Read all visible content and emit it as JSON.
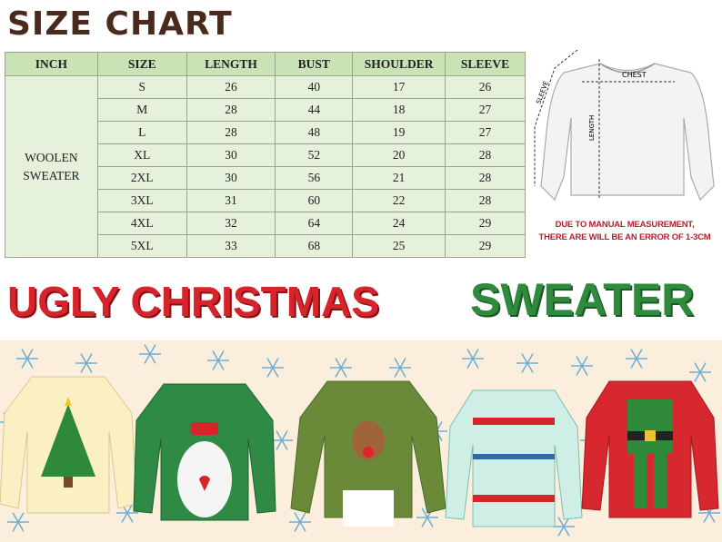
{
  "title": "SIZE CHART",
  "table": {
    "headers": [
      "INCH",
      "SIZE",
      "LENGTH",
      "BUST",
      "SHOULDER",
      "SLEEVE"
    ],
    "category": [
      "WOOLEN",
      "SWEATER"
    ],
    "rows": [
      [
        "S",
        "26",
        "40",
        "17",
        "26"
      ],
      [
        "M",
        "28",
        "44",
        "18",
        "27"
      ],
      [
        "L",
        "28",
        "48",
        "19",
        "27"
      ],
      [
        "XL",
        "30",
        "52",
        "20",
        "28"
      ],
      [
        "2XL",
        "30",
        "56",
        "21",
        "28"
      ],
      [
        "3XL",
        "31",
        "60",
        "22",
        "28"
      ],
      [
        "4XL",
        "32",
        "64",
        "24",
        "29"
      ],
      [
        "5XL",
        "33",
        "68",
        "25",
        "29"
      ]
    ]
  },
  "diagram": {
    "chest": "CHEST",
    "length": "LENGTH",
    "sleeve": "SLEEVE"
  },
  "note": [
    "DUE TO MANUAL MEASUREMENT,",
    "THERE ARE WILL BE AN ERROR OF 1-3CM"
  ],
  "banner": {
    "red": "UGLY CHRISTMAS",
    "green": "SWEATER"
  },
  "colors": {
    "header_bg": "#c9e2b6",
    "cell_bg": "#e6f1dc",
    "title": "#4a2a1c",
    "red": "#d6242a",
    "green": "#2f8a3d"
  }
}
